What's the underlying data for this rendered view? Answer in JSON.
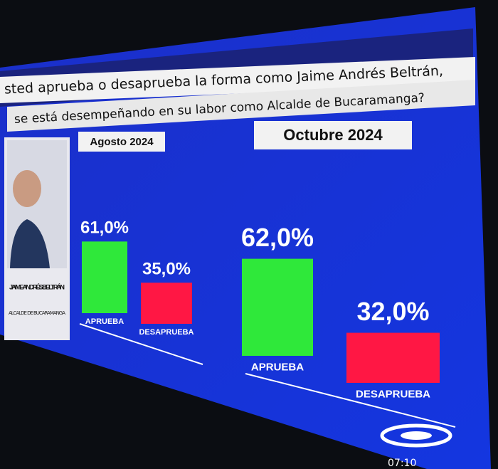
{
  "header": {
    "question_line1": "sted aprueba o desaprueba la forma como Jaime Andrés Beltrán,",
    "question_line2": "se está desempeñando en su labor como Alcalde de Bucaramanga?"
  },
  "candidate": {
    "name": "JAIME ANDRÉS BELTRÁN",
    "role": "ALCALDE DE BUCARAMANGA"
  },
  "chart_data": [
    {
      "type": "bar",
      "title": "Agosto 2024",
      "categories": [
        "APRUEBA",
        "DESAPRUEBA"
      ],
      "values": [
        61,
        35
      ],
      "value_labels": [
        "61,0%",
        "35,0%"
      ],
      "colors": [
        "#2fe83a",
        "#ff1744"
      ]
    },
    {
      "type": "bar",
      "title": "Octubre 2024",
      "categories": [
        "APRUEBA",
        "DESAPRUEBA"
      ],
      "values": [
        62,
        32
      ],
      "value_labels": [
        "62,0%",
        "32,0%"
      ],
      "colors": [
        "#2fe83a",
        "#ff1744"
      ]
    }
  ],
  "clock": "07:10"
}
